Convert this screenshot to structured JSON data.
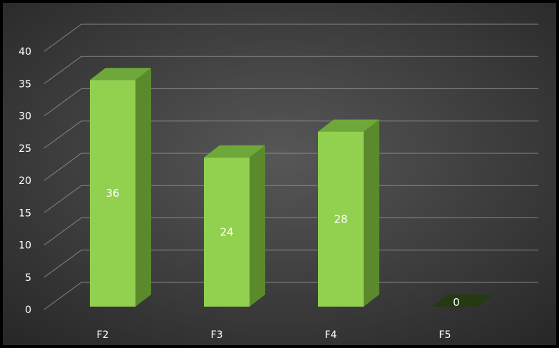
{
  "chart_data": {
    "type": "bar",
    "title": "",
    "xlabel": "",
    "ylabel": "",
    "categories": [
      "F2",
      "F3",
      "F4",
      "F5"
    ],
    "values": [
      36,
      24,
      28,
      0
    ],
    "data_labels": [
      "36",
      "24",
      "28",
      "0"
    ],
    "ylim": [
      0,
      40
    ],
    "y_ticks": [
      0,
      5,
      10,
      15,
      20,
      25,
      30,
      35,
      40
    ],
    "y_tick_labels": [
      "0",
      "5",
      "10",
      "15",
      "20",
      "25",
      "30",
      "35",
      "40"
    ],
    "grid": true,
    "legend": "none",
    "style": "3d-column",
    "colors": {
      "background_center": "#575757",
      "background_edge": "#262626",
      "bar_front": "#92d050",
      "bar_top": "#6fa83a",
      "bar_side": "#5b8a2c",
      "zero_bar": "#233a12",
      "shadow": "#1a1a1a",
      "gridline": "#9a9a9a",
      "tick_text": "#ffffff",
      "data_label_text": "#ffffff"
    }
  }
}
